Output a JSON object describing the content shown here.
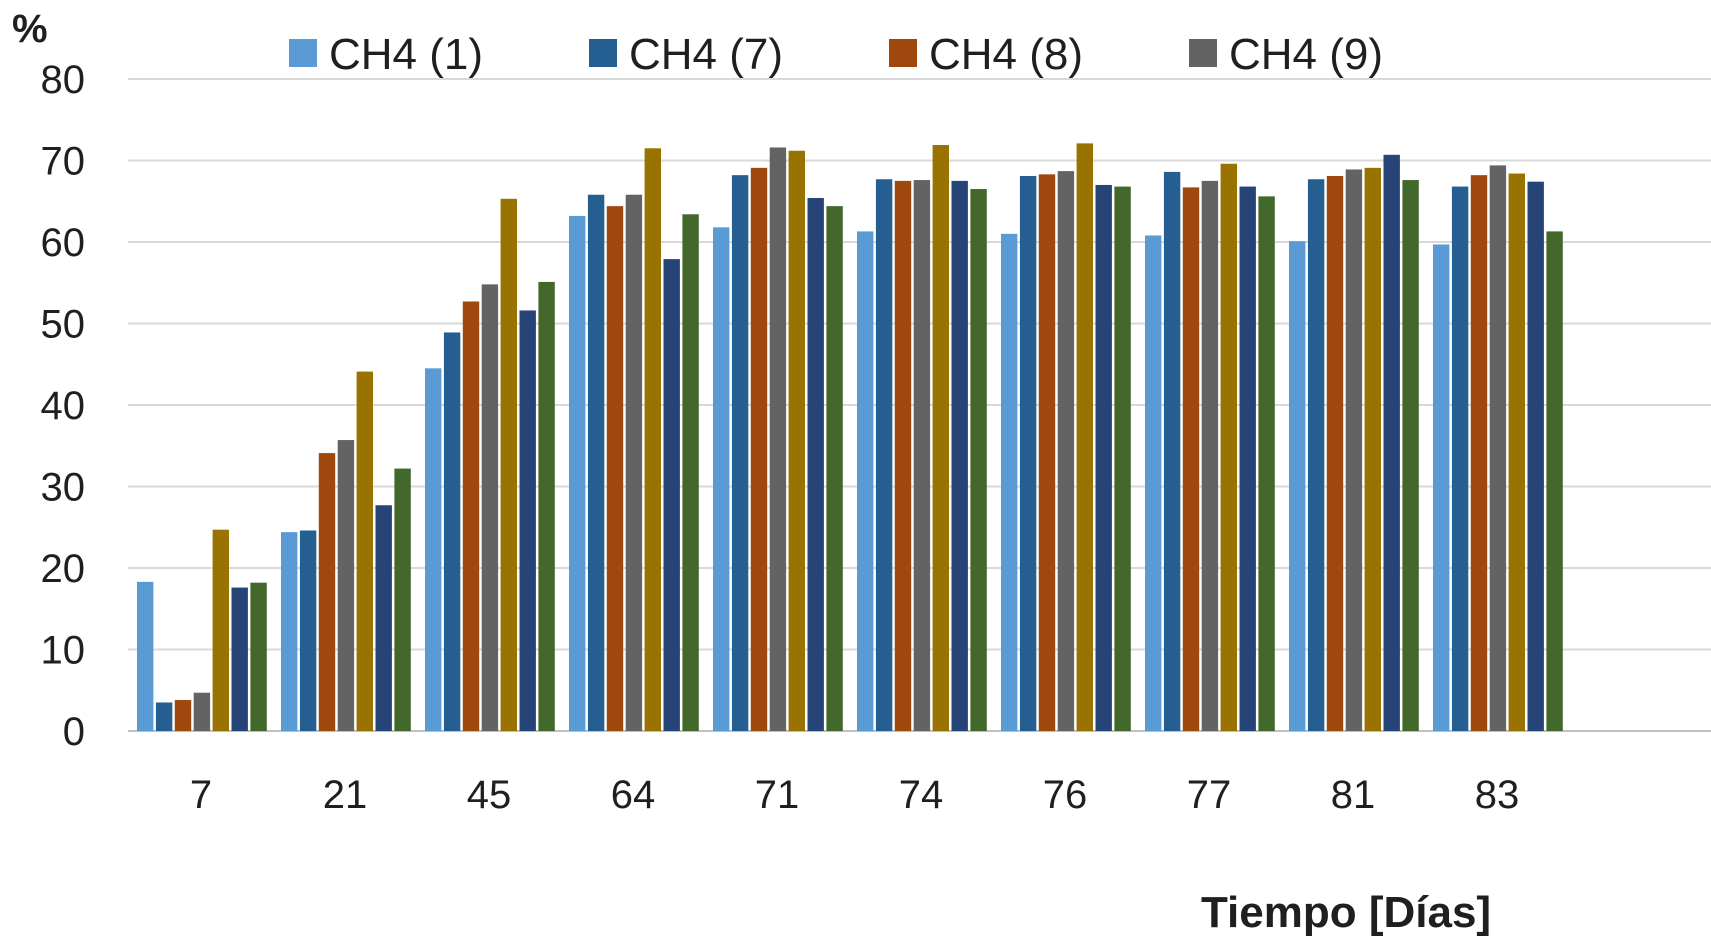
{
  "chart_data": {
    "type": "bar",
    "ylabel": "%",
    "xlabel": "Tiempo [Días]",
    "ylim": [
      0,
      80
    ],
    "yticks": [
      0,
      10,
      20,
      30,
      40,
      50,
      60,
      70,
      80
    ],
    "grid": true,
    "legend_position": "top",
    "categories": [
      "7",
      "21",
      "45",
      "64",
      "71",
      "74",
      "76",
      "77",
      "81",
      "83"
    ],
    "series": [
      {
        "name": "CH4 (1)",
        "color": "#5b9bd5",
        "values": [
          18.3,
          24.4,
          44.5,
          63.2,
          61.8,
          61.3,
          61.0,
          60.8,
          60.1,
          59.7
        ]
      },
      {
        "name": "CH4 (7)",
        "color": "#255e91",
        "values": [
          3.5,
          24.6,
          48.9,
          65.8,
          68.2,
          67.7,
          68.1,
          68.6,
          67.7,
          66.8
        ]
      },
      {
        "name": "CH4 (8)",
        "color": "#9e480e",
        "values": [
          3.8,
          34.1,
          52.7,
          64.4,
          69.1,
          67.5,
          68.3,
          66.7,
          68.1,
          68.2
        ]
      },
      {
        "name": "CH4 (9)",
        "color": "#636363",
        "values": [
          4.7,
          35.7,
          54.8,
          65.8,
          71.6,
          67.6,
          68.7,
          67.5,
          68.9,
          69.4
        ]
      },
      {
        "color": "#997300",
        "values": [
          24.7,
          44.1,
          65.3,
          71.5,
          71.2,
          71.9,
          72.1,
          69.6,
          69.1,
          68.4
        ]
      },
      {
        "color": "#264478",
        "values": [
          17.6,
          27.7,
          51.6,
          57.9,
          65.4,
          67.5,
          67.0,
          66.8,
          70.7,
          67.4
        ]
      },
      {
        "color": "#43682b",
        "values": [
          18.2,
          32.2,
          55.1,
          63.4,
          64.4,
          66.5,
          66.8,
          65.6,
          67.6,
          61.3
        ]
      }
    ]
  }
}
